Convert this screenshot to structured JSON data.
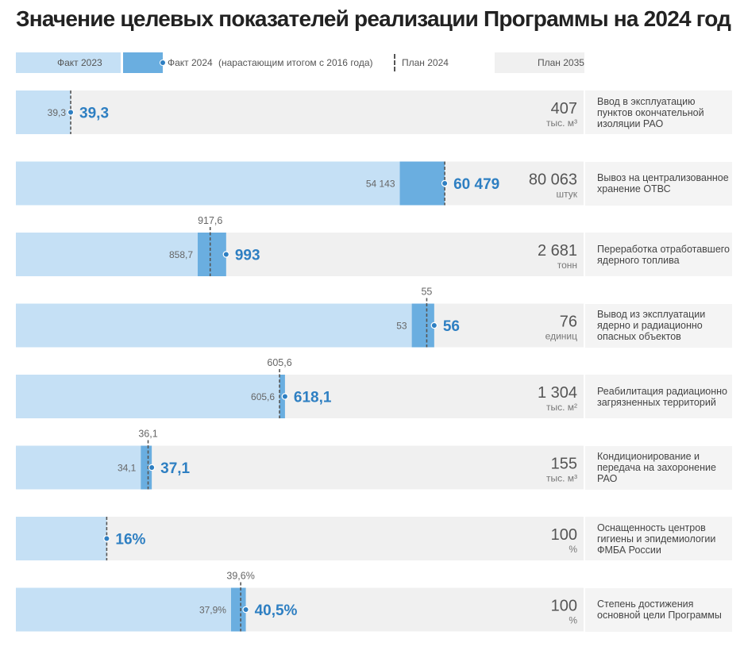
{
  "title": "Значение целевых показателей реализации Программы на 2024 год",
  "legend": {
    "fact2023": "Факт 2023",
    "fact2024": "Факт 2024",
    "fact2024_note": "(нарастающим итогом с 2016 года)",
    "plan2024": "План 2024",
    "plan2035": "План 2035"
  },
  "colors": {
    "fact2023": "#c5e0f5",
    "fact2024": "#6aaee0",
    "plan2035": "#f0f0f0",
    "value_accent": "#2e7fc2"
  },
  "chart_data": {
    "type": "bar",
    "orientation": "horizontal",
    "rows": [
      {
        "label": "Ввод в эксплуатацию пунктов окончательной изоляции РАО",
        "fact2023": 39.3,
        "fact2023_label": "39,3",
        "fact2024": 39.3,
        "fact2024_label": "39,3",
        "plan2024": 39.3,
        "plan2024_label": "",
        "plan2035": 407,
        "plan2035_label": "407",
        "unit": "тыс. м³"
      },
      {
        "label": "Вывоз на централизованное хранение ОТВС",
        "fact2023": 54143,
        "fact2023_label": "54 143",
        "fact2024": 60479,
        "fact2024_label": "60 479",
        "plan2024": 60479,
        "plan2024_label": "",
        "plan2035": 80063,
        "plan2035_label": "80 063",
        "unit": "штук"
      },
      {
        "label": "Переработка отработавшего ядерного топлива",
        "fact2023": 858.7,
        "fact2023_label": "858,7",
        "fact2024": 993,
        "fact2024_label": "993",
        "plan2024": 917.6,
        "plan2024_label": "917,6",
        "plan2035": 2681,
        "plan2035_label": "2 681",
        "unit": "тонн"
      },
      {
        "label": "Вывод из эксплуатации ядерно и радиационно опасных объектов",
        "fact2023": 53,
        "fact2023_label": "53",
        "fact2024": 56,
        "fact2024_label": "56",
        "plan2024": 55,
        "plan2024_label": "55",
        "plan2035": 76,
        "plan2035_label": "76",
        "unit": "единиц"
      },
      {
        "label": "Реабилитация радиационно загрязненных территорий",
        "fact2023": 605.6,
        "fact2023_label": "605,6",
        "fact2024": 618.1,
        "fact2024_label": "618,1",
        "plan2024": 605.6,
        "plan2024_label": "605,6",
        "plan2035": 1304,
        "plan2035_label": "1 304",
        "unit": "тыс. м²"
      },
      {
        "label": "Кондиционирование и передача на захоронение РАО",
        "fact2023": 34.1,
        "fact2023_label": "34,1",
        "fact2024": 37.1,
        "fact2024_label": "37,1",
        "plan2024": 36.1,
        "plan2024_label": "36,1",
        "plan2035": 155,
        "plan2035_label": "155",
        "unit": "тыс. м³"
      },
      {
        "label": "Оснащенность центров гигиены и эпидемиологии ФМБА России",
        "fact2023": 16,
        "fact2023_label": "",
        "fact2024": 16,
        "fact2024_label": "16%",
        "plan2024": 16,
        "plan2024_label": "",
        "plan2035": 100,
        "plan2035_label": "100",
        "unit": "%"
      },
      {
        "label": "Степень достижения основной цели Программы",
        "fact2023": 37.9,
        "fact2023_label": "37,9%",
        "fact2024": 40.5,
        "fact2024_label": "40,5%",
        "plan2024": 39.6,
        "plan2024_label": "39,6%",
        "plan2035": 100,
        "plan2035_label": "100",
        "unit": "%"
      }
    ]
  }
}
